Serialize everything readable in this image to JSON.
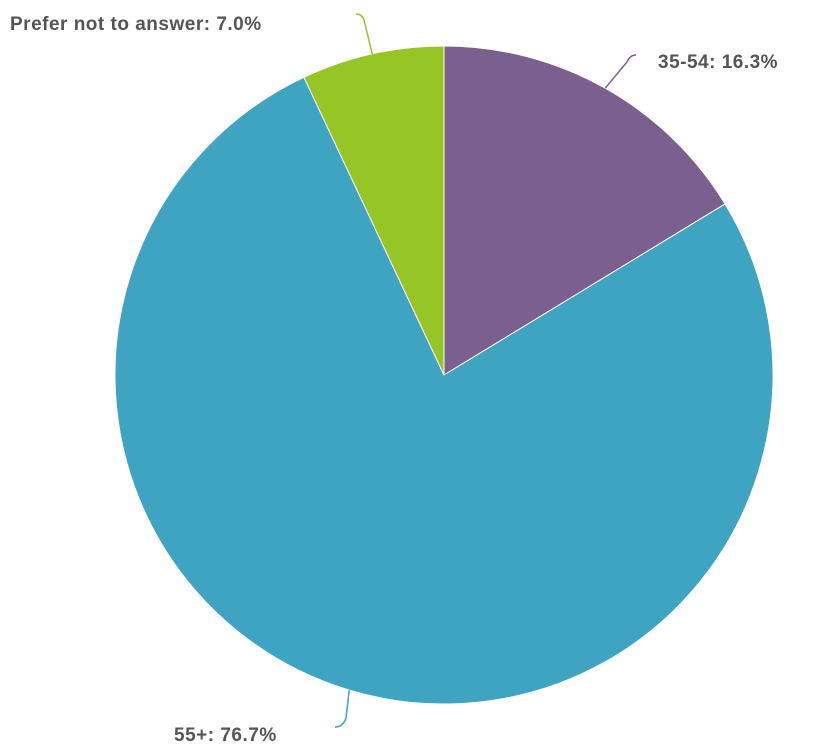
{
  "chart_data": {
    "type": "pie",
    "title": "",
    "slices": [
      {
        "label": "35-54",
        "value": 16.3,
        "display": "35-54: 16.3%",
        "color": "#7b5f8f"
      },
      {
        "label": "55+",
        "value": 76.7,
        "display": "55+: 76.7%",
        "color": "#3fa3c2"
      },
      {
        "label": "Prefer not to answer",
        "value": 7.0,
        "display": "Prefer not to answer: 7.0%",
        "color": "#95c626"
      }
    ],
    "start_angle": "12 o'clock",
    "direction": "clockwise",
    "legend": "none",
    "label_style": "outside labels with curved leader lines"
  }
}
